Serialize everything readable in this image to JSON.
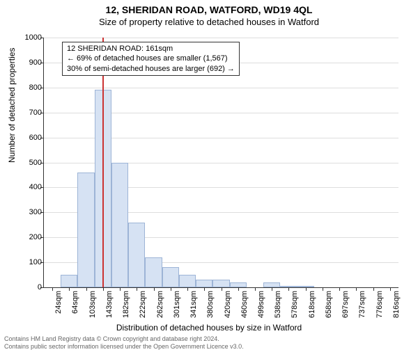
{
  "title": "12, SHERIDAN ROAD, WATFORD, WD19 4QL",
  "subtitle": "Size of property relative to detached houses in Watford",
  "ylabel": "Number of detached properties",
  "xlabel": "Distribution of detached houses by size in Watford",
  "chart": {
    "type": "histogram",
    "background_color": "#ffffff",
    "grid_color": "#dddddd",
    "axis_color": "#333333",
    "bar_fill": "#d6e2f3",
    "bar_border": "#9db4d6",
    "marker_color": "#cc3333",
    "ylim": [
      0,
      1000
    ],
    "ytick_step": 100,
    "bar_width_ratio": 1.0,
    "yticks": [
      0,
      100,
      200,
      300,
      400,
      500,
      600,
      700,
      800,
      900,
      1000
    ],
    "xticks": [
      "24sqm",
      "64sqm",
      "103sqm",
      "143sqm",
      "182sqm",
      "222sqm",
      "262sqm",
      "301sqm",
      "341sqm",
      "380sqm",
      "420sqm",
      "460sqm",
      "499sqm",
      "538sqm",
      "578sqm",
      "618sqm",
      "658sqm",
      "697sqm",
      "737sqm",
      "776sqm",
      "816sqm"
    ],
    "values": [
      0,
      50,
      460,
      790,
      500,
      260,
      120,
      80,
      50,
      30,
      30,
      20,
      0,
      20,
      5,
      5,
      0,
      0,
      0,
      0,
      0
    ],
    "marker_index": 3.45,
    "annotation": {
      "line1": "12 SHERIDAN ROAD: 161sqm",
      "line2": "← 69% of detached houses are smaller (1,567)",
      "line3": "30% of semi-detached houses are larger (692) →"
    }
  },
  "footer": {
    "line1": "Contains HM Land Registry data © Crown copyright and database right 2024.",
    "line2": "Contains public sector information licensed under the Open Government Licence v3.0."
  }
}
